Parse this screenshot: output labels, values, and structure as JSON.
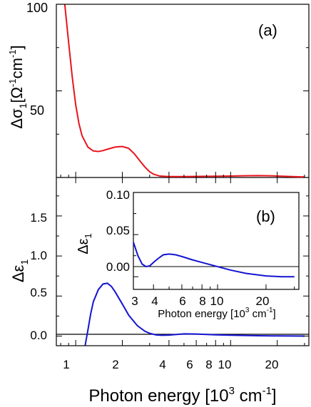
{
  "figure": {
    "xlabel_main": "Photon energy [10",
    "xlabel_sup": "3",
    "xlabel_unit": " cm",
    "xlabel_unit_sup": "-1",
    "xlabel_close": "]"
  },
  "panel_a": {
    "label": "(a)",
    "ylabel_main": "Δσ",
    "ylabel_sub": "1",
    "ylabel_bracket": "[Ω",
    "ylabel_sup1": "-1",
    "ylabel_cm": "cm",
    "ylabel_sup2": "-1",
    "ylabel_close": "]",
    "ytick_labels": [
      "50",
      "100"
    ]
  },
  "panel_b": {
    "label": "(b)",
    "ylabel_main": "Δε",
    "ylabel_sub": "1",
    "ytick_labels": [
      "0.0",
      "0.5",
      "1.0",
      "1.5"
    ],
    "xtick_labels": [
      "1",
      "2",
      "4",
      "6",
      "8",
      "10",
      "20"
    ]
  },
  "inset": {
    "ylabel_main": "Δε",
    "ylabel_sub": "1",
    "ytick_labels": [
      "0.00",
      "0.05",
      "0.10"
    ],
    "xtick_labels": [
      "3",
      "4",
      "6",
      "8",
      "10",
      "20"
    ],
    "xlabel_main": "Photon energy [10",
    "xlabel_sup": "3",
    "xlabel_unit": " cm",
    "xlabel_unit_sup": "-1",
    "xlabel_close": "]"
  },
  "chart_data": [
    {
      "type": "line",
      "panel": "a",
      "xscale": "log",
      "xlim": [
        0.75,
        32
      ],
      "ylim": [
        0,
        100
      ],
      "color": "#e8141b",
      "series": [
        {
          "x": [
            0.85,
            0.9,
            0.95,
            1.0,
            1.05,
            1.1,
            1.2,
            1.3,
            1.4,
            1.5,
            1.6,
            1.8,
            2.0,
            2.2,
            2.4,
            2.6,
            2.8,
            3.0,
            3.2,
            3.5,
            4.0,
            5.0,
            6.0,
            8.0,
            10.0,
            12.0,
            15.0,
            18.0,
            20.0,
            25.0,
            30.0
          ],
          "y": [
            100,
            78,
            58,
            42,
            31,
            24,
            17.5,
            15.3,
            15.0,
            15.5,
            16.3,
            17.6,
            17.9,
            16.8,
            13.5,
            9.5,
            6.0,
            3.3,
            1.8,
            0.8,
            0.5,
            0.5,
            0.6,
            0.7,
            0.8,
            1.0,
            1.1,
            1.0,
            0.8,
            0.5,
            0.3
          ]
        }
      ]
    },
    {
      "type": "line",
      "panel": "b",
      "xscale": "log",
      "xlim": [
        0.75,
        32
      ],
      "ylim": [
        -0.12,
        1.98
      ],
      "color": "#1414d2",
      "series": [
        {
          "x": [
            1.15,
            1.2,
            1.25,
            1.3,
            1.4,
            1.5,
            1.6,
            1.7,
            1.8,
            2.0,
            2.2,
            2.5,
            2.8,
            3.0,
            3.3,
            3.6,
            4.0,
            5.0,
            6.0,
            8.0,
            10.0,
            15.0,
            20.0,
            30.0
          ],
          "y": [
            -0.12,
            0.08,
            0.28,
            0.43,
            0.58,
            0.65,
            0.66,
            0.62,
            0.55,
            0.4,
            0.26,
            0.13,
            0.06,
            0.035,
            0.015,
            0.01,
            0.012,
            0.028,
            0.026,
            0.016,
            0.011,
            0.005,
            0.002,
            0.0
          ]
        }
      ]
    },
    {
      "type": "line",
      "panel": "inset",
      "xscale": "log",
      "xlim": [
        3,
        32
      ],
      "ylim": [
        -0.015,
        0.1
      ],
      "color": "#1414d2",
      "series": [
        {
          "x": [
            3.0,
            3.2,
            3.4,
            3.6,
            3.8,
            4.0,
            4.3,
            4.6,
            5.0,
            5.5,
            6.0,
            7.0,
            8.0,
            10.0,
            12.0,
            15.0,
            20.0,
            25.0,
            30.0
          ],
          "y": [
            0.041,
            0.025,
            0.015,
            0.012,
            0.013,
            0.017,
            0.022,
            0.026,
            0.027,
            0.026,
            0.024,
            0.02,
            0.017,
            0.012,
            0.008,
            0.004,
            0.001,
            0.0,
            0.0
          ]
        }
      ]
    }
  ]
}
